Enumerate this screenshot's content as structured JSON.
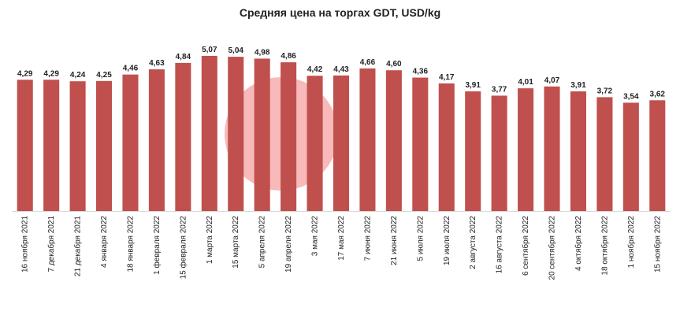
{
  "chart_data": {
    "type": "bar",
    "title": "Средняя цена на торгах GDT, USD/kg",
    "xlabel": "",
    "ylabel": "",
    "ylim": [
      0,
      5.3
    ],
    "grid": false,
    "bar_color": "#c0504d",
    "watermark_color": "#f08080",
    "categories": [
      "16 ноября 2021",
      "7 декабря 2021",
      "21 декабря 2021",
      "4 января 2022",
      "18 января 2022",
      "1 февраля 2022",
      "15 февраля 2022",
      "1 марта 2022",
      "15 марта 2022",
      "5 апреля 2022",
      "19 апреля 2022",
      "3 мая 2022",
      "17 мая 2022",
      "7 июня 2022",
      "21 июня 2022",
      "5 июля 2022",
      "19 июля 2022",
      "2 августа 2022",
      "16 августа 2022",
      "6 сентября 2022",
      "20 сентября 2022",
      "4 октября 2022",
      "18 октября 2022",
      "1 ноября 2022",
      "15 ноября 2022"
    ],
    "values": [
      4.29,
      4.29,
      4.24,
      4.25,
      4.46,
      4.63,
      4.84,
      5.07,
      5.04,
      4.98,
      4.86,
      4.42,
      4.43,
      4.66,
      4.6,
      4.36,
      4.17,
      3.91,
      3.77,
      4.01,
      4.07,
      3.91,
      3.72,
      3.54,
      3.62
    ],
    "value_labels": [
      "4,29",
      "4,29",
      "4,24",
      "4,25",
      "4,46",
      "4,63",
      "4,84",
      "5,07",
      "5,04",
      "4,98",
      "4,86",
      "4,42",
      "4,43",
      "4,66",
      "4,60",
      "4,36",
      "4,17",
      "3,91",
      "3,77",
      "4,01",
      "4,07",
      "3,91",
      "3,72",
      "3,54",
      "3,62"
    ]
  }
}
